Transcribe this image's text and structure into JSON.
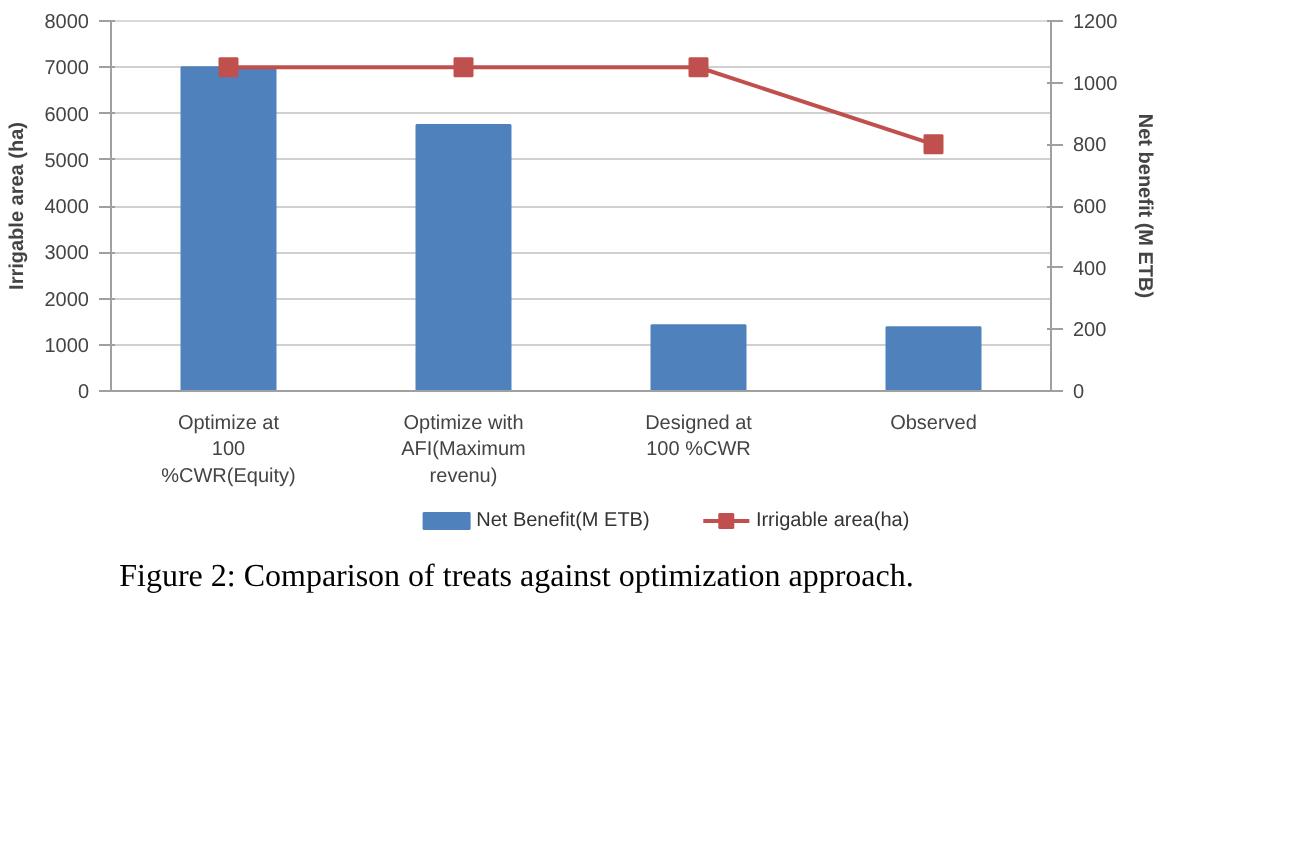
{
  "chart_data": {
    "type": "bar",
    "categories": [
      "Optimize at 100 %CWR(Equity)",
      "Optimize with AFI(Maximum revenu)",
      "Designed at 100 %CWR",
      "Observed"
    ],
    "ylabel": "Irrigable area (ha)",
    "y2label": "Net benefit (M ETB)",
    "ylim": [
      0,
      8000
    ],
    "yticks": [
      0,
      1000,
      2000,
      3000,
      4000,
      5000,
      6000,
      7000,
      8000
    ],
    "y2lim": [
      0,
      1200
    ],
    "y2ticks": [
      0,
      200,
      400,
      600,
      800,
      1000,
      1200
    ],
    "series": [
      {
        "name": "Net Benefit(M ETB)",
        "color": "#4f81bd",
        "values": [
          7000,
          5750,
          1420,
          1380
        ]
      },
      {
        "name": "Irrigable area(ha)",
        "color": "#c0504d",
        "type": "line",
        "axis": "y2",
        "marker": "square",
        "values": [
          1050,
          1050,
          1050,
          800
        ]
      }
    ],
    "grid": "y",
    "legend": "bottom",
    "annotations": [
      "Figure 2: Comparison of treats against optimization approach."
    ]
  }
}
